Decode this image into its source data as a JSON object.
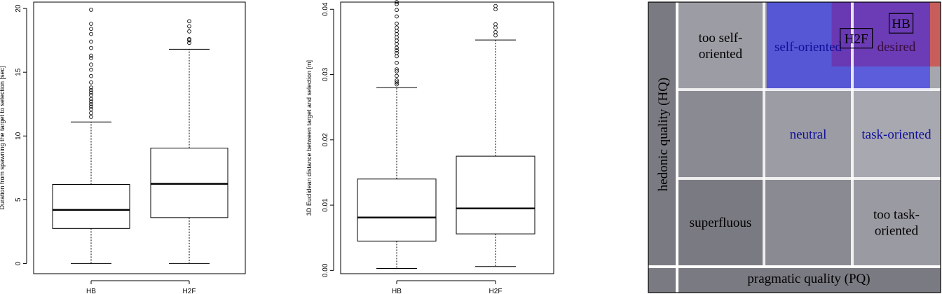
{
  "chart_data": [
    {
      "type": "box",
      "title": "",
      "xlabel": "",
      "ylabel": "Duration from spawning the target to selection [sec]",
      "ylim": [
        -0.8,
        20.5
      ],
      "yticks": [
        0,
        5,
        10,
        15,
        20
      ],
      "ytick_labels": [
        "0",
        "5",
        "10",
        "15",
        "20"
      ],
      "categories": [
        "HB",
        "H2F"
      ],
      "boxes": [
        {
          "name": "HB",
          "min": 0,
          "q1": 2.75,
          "median": 4.2,
          "q3": 6.2,
          "max": 11.1,
          "outliers": [
            11.5,
            11.8,
            12.1,
            12.3,
            12.5,
            12.7,
            12.9,
            13.2,
            13.4,
            13.6,
            13.8,
            14.2,
            14.7,
            15.2,
            15.6,
            16.1,
            16.3,
            16.9,
            17.4,
            18.0,
            18.4,
            18.8,
            19.9
          ]
        },
        {
          "name": "H2F",
          "min": 0,
          "q1": 3.6,
          "median": 6.25,
          "q3": 9.05,
          "max": 16.8,
          "outliers": [
            17.3,
            17.5,
            17.6,
            18.2,
            18.6,
            19.0
          ]
        }
      ]
    },
    {
      "type": "box",
      "title": "",
      "xlabel": "",
      "ylabel": "3D Euclidean distance between target and selection [m]",
      "ylim": [
        -0.0005,
        0.0411
      ],
      "yticks": [
        0.0,
        0.01,
        0.02,
        0.03,
        0.04
      ],
      "ytick_labels": [
        "0.00",
        "0.01",
        "0.02",
        "0.03",
        "0.04"
      ],
      "categories": [
        "HB",
        "H2F"
      ],
      "boxes": [
        {
          "name": "HB",
          "min": 0.0003,
          "q1": 0.0045,
          "median": 0.0081,
          "q3": 0.014,
          "max": 0.028,
          "outliers": [
            0.0285,
            0.0288,
            0.0291,
            0.0298,
            0.0305,
            0.0308,
            0.0318,
            0.0328,
            0.0333,
            0.0337,
            0.0341,
            0.0347,
            0.0352,
            0.0357,
            0.0362,
            0.0367,
            0.0372,
            0.0378,
            0.0389,
            0.0399,
            0.0408,
            0.0411
          ]
        },
        {
          "name": "H2F",
          "min": 0.0006,
          "q1": 0.0056,
          "median": 0.0095,
          "q3": 0.0175,
          "max": 0.0353,
          "outliers": [
            0.036,
            0.0365,
            0.0372,
            0.0377,
            0.04,
            0.0405
          ]
        }
      ]
    },
    {
      "type": "quadrant",
      "title": "",
      "xlabel": "pragmatic quality (PQ)",
      "ylabel": "hedonic quality (HQ)",
      "grid": true,
      "cells": [
        {
          "label": [
            "too self-",
            "oriented"
          ],
          "row": 0,
          "col": 0
        },
        {
          "label": [
            "self-oriented"
          ],
          "row": 0,
          "col": 1
        },
        {
          "label": [
            "desired"
          ],
          "row": 0,
          "col": 2
        },
        {
          "label": [
            "neutral"
          ],
          "row": 1,
          "col": 1
        },
        {
          "label": [
            "task-oriented"
          ],
          "row": 1,
          "col": 2
        },
        {
          "label": [
            "superfluous"
          ],
          "row": 2,
          "col": 0
        },
        {
          "label": [
            "too task-",
            "oriented"
          ],
          "row": 2,
          "col": 2
        }
      ],
      "markers": [
        {
          "label": "HB",
          "pq": 2.55,
          "hq": 2.76
        },
        {
          "label": "H2F",
          "pq": 2.04,
          "hq": 2.59
        }
      ],
      "confidence_regions": [
        {
          "name": "HB",
          "color": "#e2231a",
          "pq": [
            1.76,
            3.0
          ],
          "hq": [
            2.27,
            3.0
          ]
        },
        {
          "name": "H2F",
          "color": "#1f20ff",
          "pq": [
            1.02,
            2.88
          ],
          "hq": [
            2.0,
            3.0
          ]
        }
      ]
    }
  ]
}
